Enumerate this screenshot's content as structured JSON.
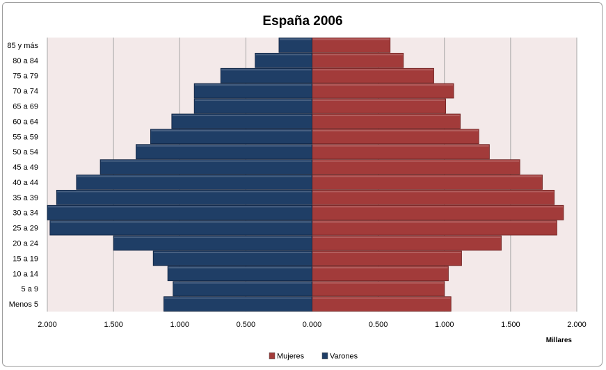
{
  "chart_data": {
    "type": "bar",
    "orientation": "horizontal",
    "subtype": "population-pyramid",
    "title": "España 2006",
    "xlabel": "Millares",
    "ylabel": "",
    "xlim": [
      -2.0,
      2.0
    ],
    "x_ticks": [
      "2.000",
      "1.500",
      "1.000",
      "0.500",
      "0.000",
      "0.500",
      "1.000",
      "1.500",
      "2.000"
    ],
    "grid": "vertical",
    "legend_position": "bottom",
    "categories": [
      "Menos 5",
      "5 a 9",
      "10 a 14",
      "15 a 19",
      "20 a 24",
      "25 a 29",
      "30 a 34",
      "35 a 39",
      "40 a 44",
      "45 a 49",
      "50 a 54",
      "55 a 59",
      "60 a 64",
      "65 a 69",
      "70 a 74",
      "75 a 79",
      "80 a 84",
      "85 y más"
    ],
    "series": [
      {
        "name": "Mujeres",
        "color": "#a23b3a",
        "side": "right",
        "values": [
          1.05,
          1.0,
          1.03,
          1.13,
          1.43,
          1.85,
          1.9,
          1.83,
          1.74,
          1.57,
          1.34,
          1.26,
          1.12,
          1.01,
          1.07,
          0.92,
          0.69,
          0.59
        ]
      },
      {
        "name": "Varones",
        "color": "#1f3e66",
        "side": "left",
        "values": [
          1.12,
          1.05,
          1.09,
          1.2,
          1.5,
          1.98,
          2.0,
          1.93,
          1.78,
          1.6,
          1.33,
          1.22,
          1.06,
          0.89,
          0.89,
          0.69,
          0.43,
          0.25
        ]
      }
    ]
  },
  "colors": {
    "plot_background": "#f3e9e9",
    "grid": "#a6a6a6"
  }
}
